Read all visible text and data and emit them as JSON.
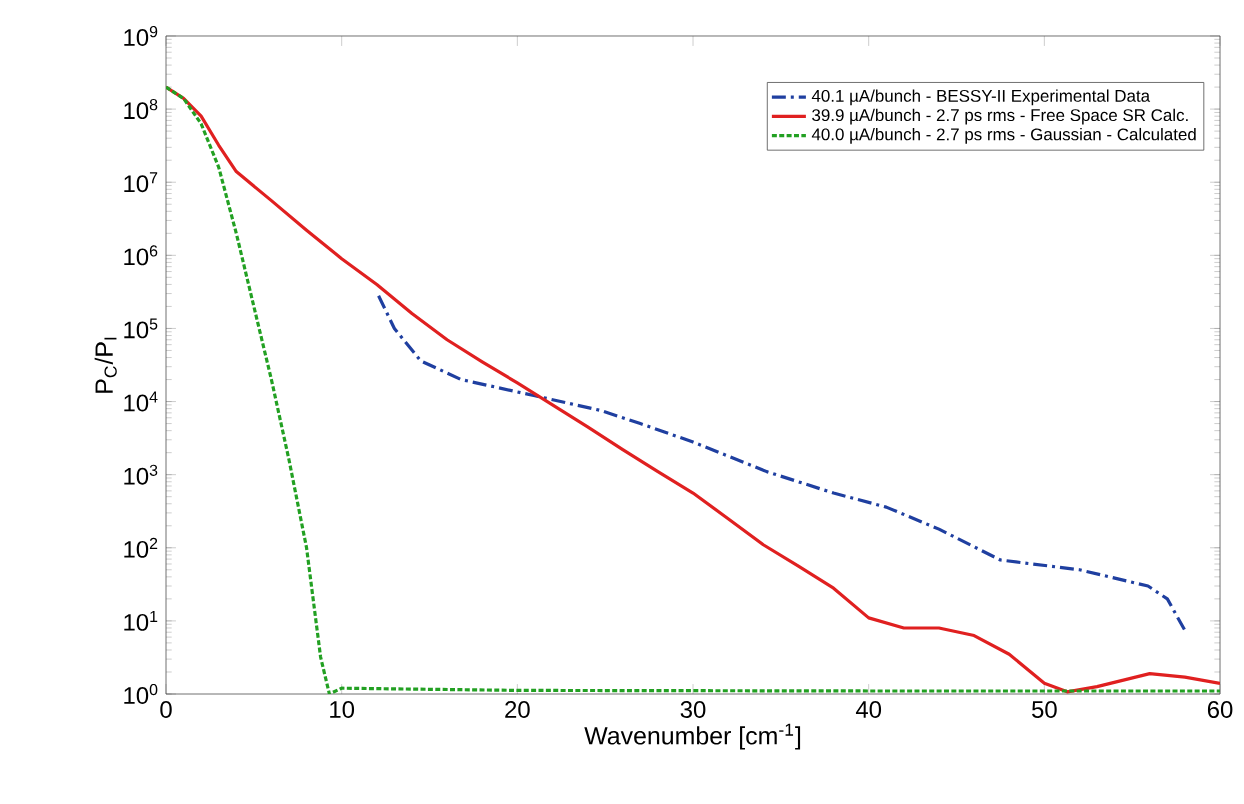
{
  "chart_data": {
    "type": "line",
    "xlabel": "Wavenumber [cm$^{-1}$]",
    "ylabel": "P$_{C}$/P$_{I}$",
    "xlim": [
      0,
      60
    ],
    "xticks": [
      0,
      10,
      20,
      30,
      40,
      50,
      60
    ],
    "ylim": [
      1,
      1000000000.0
    ],
    "yticks": [
      {
        "value": 1,
        "label": "10$^{0}$"
      },
      {
        "value": 10,
        "label": "10$^{1}$"
      },
      {
        "value": 100,
        "label": "10$^{2}$"
      },
      {
        "value": 1000,
        "label": "10$^{3}$"
      },
      {
        "value": 10000.0,
        "label": "10$^{4}$"
      },
      {
        "value": 100000.0,
        "label": "10$^{5}$"
      },
      {
        "value": 1000000.0,
        "label": "10$^{6}$"
      },
      {
        "value": 10000000.0,
        "label": "10$^{7}$"
      },
      {
        "value": 100000000.0,
        "label": "10$^{8}$"
      },
      {
        "value": 1000000000.0,
        "label": "10$^{9}$"
      }
    ],
    "log": "y",
    "grid": false,
    "legend": "top right",
    "marker": "none",
    "series": [
      {
        "name": "40.1 µA/bunch - BESSY-II Experimental Data",
        "color": "#1f3fa0",
        "line_style": "dashed",
        "x": [
          12.1,
          13,
          14.5,
          16.8,
          21,
          24.7,
          27,
          30,
          34.2,
          38,
          41,
          44,
          47.5,
          52,
          55.9,
          57,
          58
        ],
        "values": [
          280000.0,
          100000.0,
          36000.0,
          20000.0,
          12000.0,
          7600.0,
          5000.0,
          2800.0,
          1100.0,
          560,
          360,
          180,
          68,
          50,
          30,
          20,
          7.4
        ]
      },
      {
        "name": "39.9 µA/bunch - 2.7 ps rms - Free Space SR Calc.",
        "color": "#e02020",
        "line_style": "solid",
        "x": [
          0,
          1,
          2,
          3,
          4,
          6,
          8,
          10,
          12,
          14,
          16,
          18,
          20,
          22,
          24,
          26,
          28,
          30,
          32,
          34,
          36,
          38,
          40,
          42,
          44,
          46,
          48,
          50,
          51.3,
          53,
          56,
          58,
          60
        ],
        "values": [
          200000000.0,
          140000000.0,
          80000000.0,
          32000000.0,
          14000000.0,
          5600000.0,
          2200000.0,
          900000.0,
          400000.0,
          160000.0,
          70000.0,
          35000.0,
          18000.0,
          9000.0,
          4500.0,
          2200.0,
          1100.0,
          560,
          250,
          110,
          56,
          28,
          11,
          8,
          8,
          6.3,
          3.5,
          1.4,
          1.07,
          1.26,
          1.9,
          1.7,
          1.4
        ]
      },
      {
        "name": "40.0 µA/bunch - 2.7 ps rms - Gaussian - Calculated",
        "color": "#22a022",
        "line_style": "dotted",
        "x": [
          0,
          1,
          2,
          3,
          4,
          5,
          6,
          7,
          8,
          8.8,
          9.3,
          10,
          20,
          40,
          60
        ],
        "values": [
          200000000.0,
          140000000.0,
          63000000.0,
          16000000.0,
          2000000.0,
          200000.0,
          20000.0,
          1600.0,
          100,
          3.2,
          1,
          1.2,
          1.12,
          1.1,
          1.1
        ]
      }
    ]
  }
}
